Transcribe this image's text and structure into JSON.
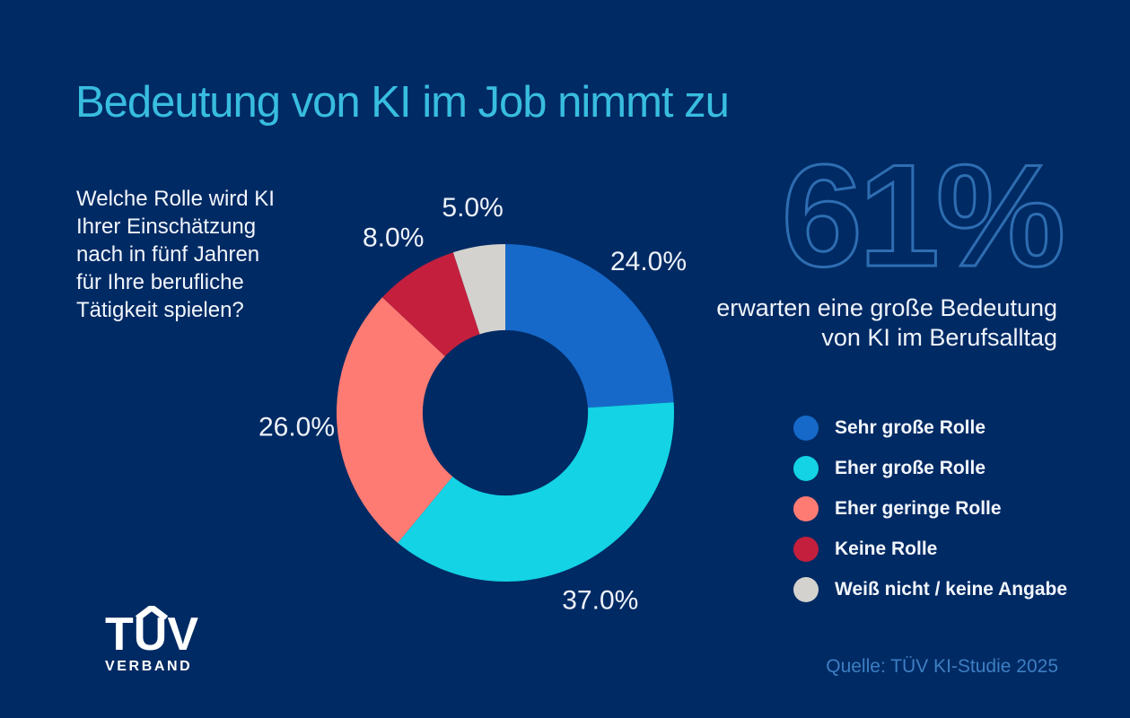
{
  "title": "Bedeutung von KI im Job nimmt zu",
  "question": {
    "lines": [
      "Welche Rolle wird KI",
      "Ihrer Einschätzung",
      "nach in fünf Jahren",
      "für Ihre berufliche",
      "Tätigkeit spielen?"
    ]
  },
  "highlight": {
    "big_number": "61%",
    "caption_line1": "erwarten eine große Bedeutung",
    "caption_line2": "von KI im Berufsalltag"
  },
  "chart_data": {
    "type": "pie",
    "subtype": "donut",
    "title": "Bedeutung von KI im Job nimmt zu",
    "categories": [
      "Sehr große Rolle",
      "Eher große Rolle",
      "Eher geringe Rolle",
      "Keine Rolle",
      "Weiß nicht / keine Angabe"
    ],
    "values": [
      24.0,
      37.0,
      26.0,
      8.0,
      5.0
    ],
    "colors": [
      "#1669c9",
      "#13d3e4",
      "#fd7b73",
      "#c41f3c",
      "#d3d2ce"
    ],
    "start_angle_deg": 0,
    "direction": "clockwise",
    "donut_hole_ratio": 0.49,
    "legend_position": "right",
    "data_label_format": "X.X%"
  },
  "logo": {
    "text": "TUV",
    "subtext": "VERBAND"
  },
  "source": "Quelle: TÜV KI-Studie 2025",
  "colors": {
    "background": "#002a64",
    "title": "#38bddf",
    "outline_number_stroke": "#2e6db1",
    "body_text": "#f2f6fc",
    "source_text": "#3d7ec2"
  }
}
